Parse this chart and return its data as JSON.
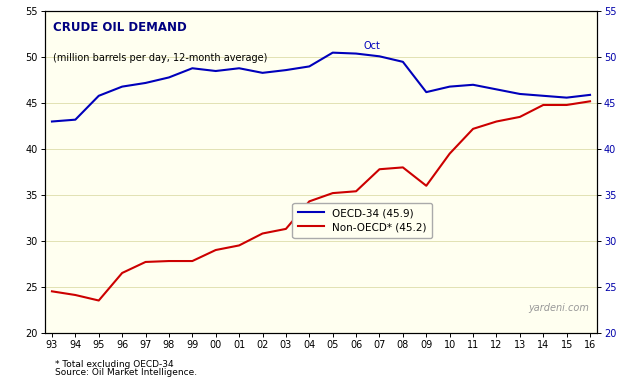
{
  "title": "CRUDE OIL DEMAND",
  "subtitle": "(million barrels per day, 12-month average)",
  "bg_color": "#FFFFF0",
  "fig_color": "#FFFFFF",
  "ylabel_left": "",
  "ylabel_right": "",
  "ylim": [
    20,
    55
  ],
  "yticks": [
    20,
    25,
    30,
    35,
    40,
    45,
    50,
    55
  ],
  "footnote1": "* Total excluding OECD-34",
  "footnote2": "Source: Oil Market Intelligence.",
  "watermark": "yardeni.com",
  "annotation": "Oct",
  "oecd_label": "OECD-34 (45.9)",
  "nonoecd_label": "Non-OECD* (45.2)",
  "oecd_color": "#0000BB",
  "nonoecd_color": "#CC0000",
  "title_color": "#000080",
  "subtitle_color": "#000000",
  "x_labels": [
    "93",
    "94",
    "95",
    "96",
    "97",
    "98",
    "99",
    "00",
    "01",
    "02",
    "03",
    "04",
    "05",
    "06",
    "07",
    "08",
    "09",
    "10",
    "11",
    "12",
    "13",
    "14",
    "15",
    "16"
  ],
  "oecd_data": [
    43.0,
    43.2,
    45.8,
    46.8,
    47.2,
    47.8,
    48.8,
    48.5,
    48.8,
    48.3,
    48.6,
    49.0,
    50.5,
    50.4,
    50.1,
    49.5,
    46.2,
    46.8,
    47.0,
    46.5,
    46.0,
    45.8,
    45.6,
    45.9
  ],
  "nonoecd_data": [
    24.5,
    24.1,
    23.5,
    26.5,
    27.7,
    27.8,
    27.8,
    29.0,
    29.5,
    30.8,
    31.3,
    34.3,
    35.2,
    35.4,
    37.8,
    38.0,
    36.0,
    39.5,
    42.2,
    43.0,
    43.5,
    44.8,
    44.8,
    45.2
  ],
  "grid_color": "#DDDDAA",
  "tick_fontsize": 7,
  "legend_fontsize": 7.5,
  "title_fontsize": 8.5,
  "subtitle_fontsize": 7,
  "watermark_fontsize": 7,
  "footnote_fontsize": 6.5
}
